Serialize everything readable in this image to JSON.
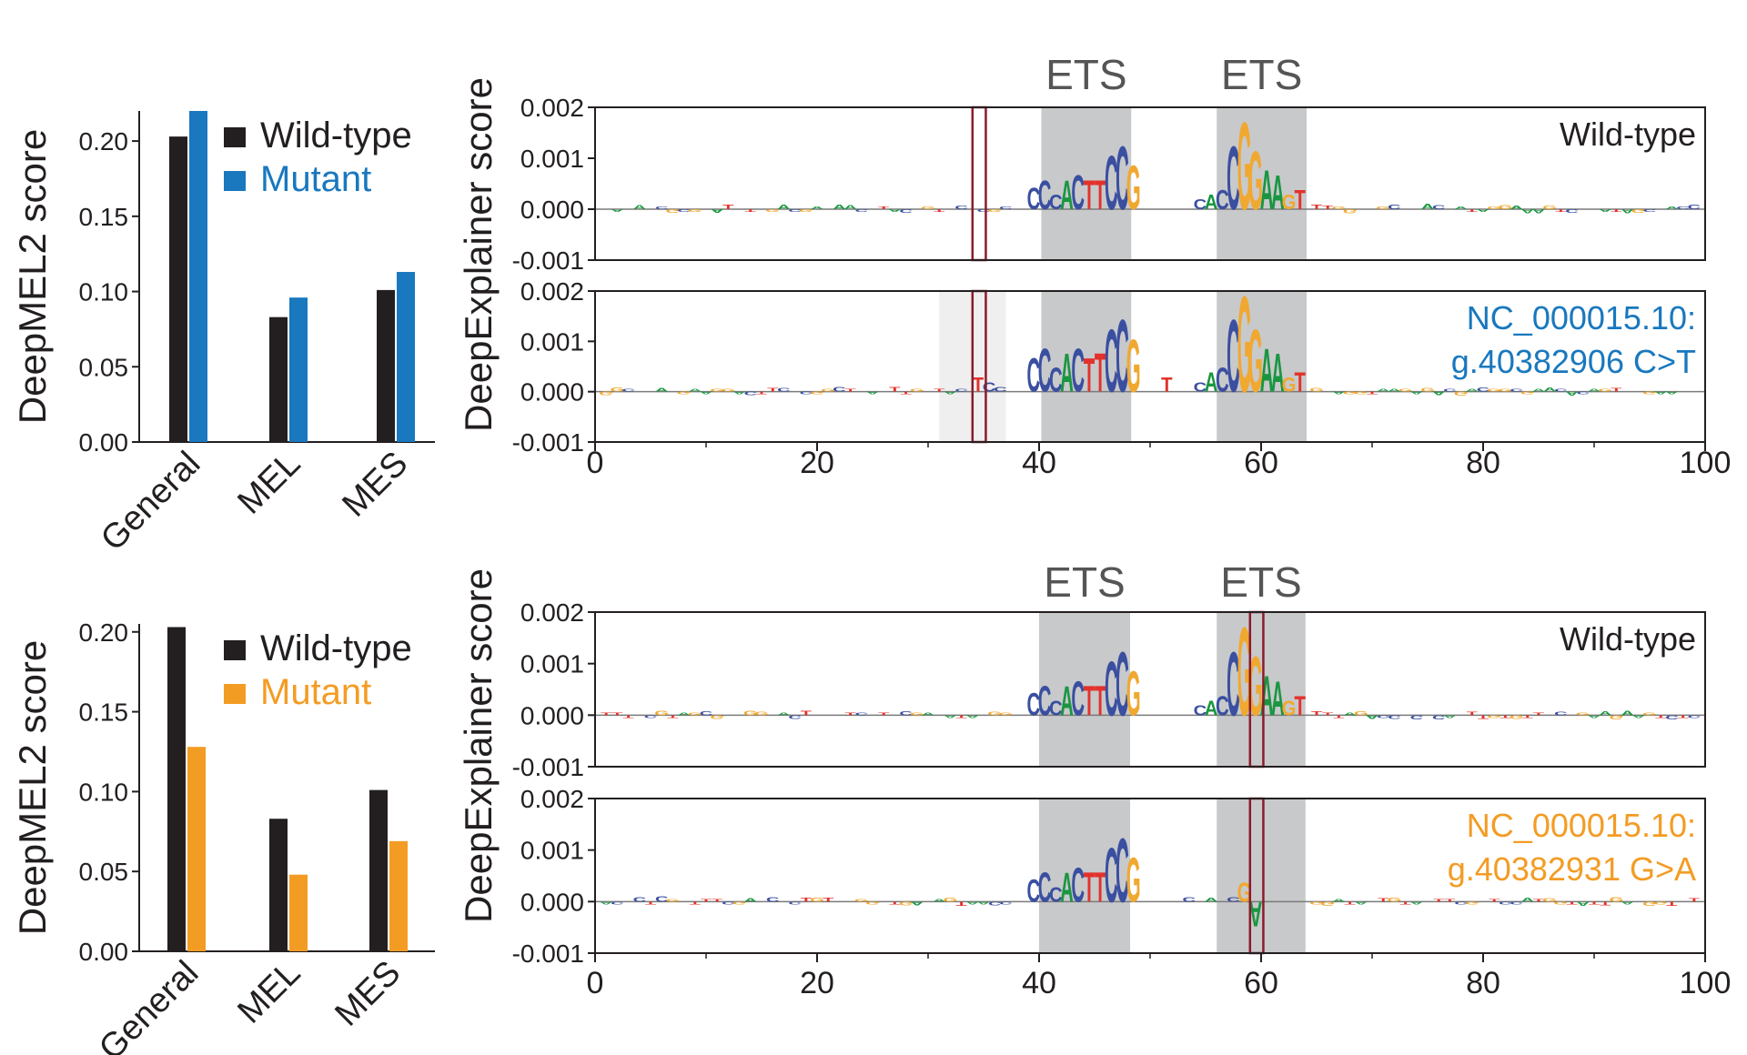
{
  "colors": {
    "wildtype": "#231f20",
    "mutant_blue": "#1978be",
    "mutant_orange": "#f39c24",
    "motif_shade": "#c8c9cb",
    "variant_box": "#8b1a2b",
    "base_A": "#1a9641",
    "base_C": "#3a4fa0",
    "base_G": "#f0a830",
    "base_T": "#e2322b"
  },
  "chart_data": [
    {
      "id": "bars-top",
      "type": "bar",
      "ylabel": "DeepMEL2 score",
      "ylim": [
        0,
        0.22
      ],
      "yticks": [
        "0.00",
        "0.05",
        "0.10",
        "0.15",
        "0.20"
      ],
      "ytick_values": [
        0,
        0.05,
        0.1,
        0.15,
        0.2
      ],
      "categories": [
        "General",
        "MEL",
        "MES"
      ],
      "legend": [
        "Wild-type",
        "Mutant"
      ],
      "series": [
        {
          "name": "Wild-type",
          "color": "#231f20",
          "values": [
            0.203,
            0.083,
            0.101
          ]
        },
        {
          "name": "Mutant",
          "color": "#1978be",
          "values": [
            0.22,
            0.096,
            0.113
          ]
        }
      ]
    },
    {
      "id": "bars-bottom",
      "type": "bar",
      "ylabel": "DeepMEL2 score",
      "ylim": [
        0,
        0.205
      ],
      "yticks": [
        "0.00",
        "0.05",
        "0.10",
        "0.15",
        "0.20"
      ],
      "ytick_values": [
        0,
        0.05,
        0.1,
        0.15,
        0.2
      ],
      "categories": [
        "General",
        "MEL",
        "MES"
      ],
      "legend": [
        "Wild-type",
        "Mutant"
      ],
      "series": [
        {
          "name": "Wild-type",
          "color": "#231f20",
          "values": [
            0.203,
            0.083,
            0.101
          ]
        },
        {
          "name": "Mutant",
          "color": "#f39c24",
          "values": [
            0.128,
            0.048,
            0.069
          ]
        }
      ]
    },
    {
      "id": "logo-top",
      "type": "sequence-logo",
      "ylabel": "DeepExplainer score",
      "xlim": [
        0,
        100
      ],
      "xticks": [
        "0",
        "20",
        "40",
        "60",
        "80",
        "100"
      ],
      "xtick_values": [
        0,
        20,
        40,
        60,
        80,
        100
      ],
      "ylim": [
        -0.001,
        0.002
      ],
      "yticks": [
        "0.002",
        "0.001",
        "0.000",
        "-0.001"
      ],
      "ytick_values": [
        0.002,
        0.001,
        0.0,
        -0.001
      ],
      "motifs": [
        {
          "label": "ETS",
          "start": 40.2,
          "end": 48.3
        },
        {
          "label": "ETS",
          "start": 56.0,
          "end": 64.1
        }
      ],
      "panels": [
        {
          "label_lines": [
            "Wild-type"
          ],
          "label_color": "#231f20",
          "variant_box": {
            "start": 34.0,
            "end": 35.2
          },
          "shade": null,
          "motif_letters": [
            {
              "base": "C",
              "pos": 39.0,
              "score": 0.00045
            },
            {
              "base": "C",
              "pos": 40.0,
              "score": 0.0006
            },
            {
              "base": "C",
              "pos": 41.0,
              "score": 0.0003
            },
            {
              "base": "A",
              "pos": 42.0,
              "score": 0.0006
            },
            {
              "base": "C",
              "pos": 43.0,
              "score": 0.0007
            },
            {
              "base": "T",
              "pos": 44.0,
              "score": 0.0006
            },
            {
              "base": "T",
              "pos": 45.0,
              "score": 0.0006
            },
            {
              "base": "C",
              "pos": 46.0,
              "score": 0.0011
            },
            {
              "base": "C",
              "pos": 47.0,
              "score": 0.0013
            },
            {
              "base": "G",
              "pos": 48.0,
              "score": 0.0009
            },
            {
              "base": "C",
              "pos": 54.0,
              "score": 0.0002
            },
            {
              "base": "A",
              "pos": 55.0,
              "score": 0.0003
            },
            {
              "base": "C",
              "pos": 56.0,
              "score": 0.0004
            },
            {
              "base": "C",
              "pos": 57.0,
              "score": 0.0013
            },
            {
              "base": "G",
              "pos": 58.0,
              "score": 0.0018
            },
            {
              "base": "G",
              "pos": 59.0,
              "score": 0.0012
            },
            {
              "base": "A",
              "pos": 60.0,
              "score": 0.0008
            },
            {
              "base": "A",
              "pos": 61.0,
              "score": 0.0007
            },
            {
              "base": "G",
              "pos": 62.0,
              "score": 0.0003
            },
            {
              "base": "T",
              "pos": 63.0,
              "score": 0.0004
            }
          ]
        },
        {
          "label_lines": [
            "NC_000015.10:",
            "g.40382906 C>T"
          ],
          "label_color": "#1978be",
          "variant_box": {
            "start": 34.0,
            "end": 35.2
          },
          "shade": {
            "start": 31.0,
            "end": 37.0
          },
          "motif_letters": [
            {
              "base": "T",
              "pos": 34.0,
              "score": 0.0003
            },
            {
              "base": "C",
              "pos": 35.0,
              "score": 0.0002
            },
            {
              "base": "C",
              "pos": 36.0,
              "score": 0.0001
            },
            {
              "base": "C",
              "pos": 39.0,
              "score": 0.0007
            },
            {
              "base": "C",
              "pos": 40.0,
              "score": 0.0009
            },
            {
              "base": "C",
              "pos": 41.0,
              "score": 0.0005
            },
            {
              "base": "A",
              "pos": 42.0,
              "score": 0.0008
            },
            {
              "base": "C",
              "pos": 43.0,
              "score": 0.0009
            },
            {
              "base": "T",
              "pos": 44.0,
              "score": 0.0007
            },
            {
              "base": "T",
              "pos": 45.0,
              "score": 0.0008
            },
            {
              "base": "C",
              "pos": 46.0,
              "score": 0.0013
            },
            {
              "base": "C",
              "pos": 47.0,
              "score": 0.0015
            },
            {
              "base": "G",
              "pos": 48.0,
              "score": 0.0011
            },
            {
              "base": "T",
              "pos": 51.0,
              "score": 0.0003
            },
            {
              "base": "C",
              "pos": 54.0,
              "score": 0.0002
            },
            {
              "base": "A",
              "pos": 55.0,
              "score": 0.0004
            },
            {
              "base": "C",
              "pos": 56.0,
              "score": 0.0005
            },
            {
              "base": "C",
              "pos": 57.0,
              "score": 0.0015
            },
            {
              "base": "G",
              "pos": 58.0,
              "score": 0.002
            },
            {
              "base": "G",
              "pos": 59.0,
              "score": 0.0013
            },
            {
              "base": "A",
              "pos": 60.0,
              "score": 0.0009
            },
            {
              "base": "A",
              "pos": 61.0,
              "score": 0.0008
            },
            {
              "base": "G",
              "pos": 62.0,
              "score": 0.0003
            },
            {
              "base": "T",
              "pos": 63.0,
              "score": 0.0004
            }
          ]
        }
      ]
    },
    {
      "id": "logo-bottom",
      "type": "sequence-logo",
      "ylabel": "DeepExplainer score",
      "xlim": [
        0,
        100
      ],
      "xticks": [
        "0",
        "20",
        "40",
        "60",
        "80",
        "100"
      ],
      "xtick_values": [
        0,
        20,
        40,
        60,
        80,
        100
      ],
      "ylim": [
        -0.001,
        0.002
      ],
      "yticks": [
        "0.002",
        "0.001",
        "0.000",
        "-0.001"
      ],
      "ytick_values": [
        0.002,
        0.001,
        0.0,
        -0.001
      ],
      "motifs": [
        {
          "label": "ETS",
          "start": 40.0,
          "end": 48.2
        },
        {
          "label": "ETS",
          "start": 56.0,
          "end": 64.0
        }
      ],
      "panels": [
        {
          "label_lines": [
            "Wild-type"
          ],
          "label_color": "#231f20",
          "variant_box": {
            "start": 59.0,
            "end": 60.2
          },
          "shade": null,
          "motif_letters": [
            {
              "base": "C",
              "pos": 39.0,
              "score": 0.00045
            },
            {
              "base": "C",
              "pos": 40.0,
              "score": 0.0006
            },
            {
              "base": "C",
              "pos": 41.0,
              "score": 0.0003
            },
            {
              "base": "A",
              "pos": 42.0,
              "score": 0.0006
            },
            {
              "base": "C",
              "pos": 43.0,
              "score": 0.0007
            },
            {
              "base": "T",
              "pos": 44.0,
              "score": 0.0006
            },
            {
              "base": "T",
              "pos": 45.0,
              "score": 0.0006
            },
            {
              "base": "C",
              "pos": 46.0,
              "score": 0.0011
            },
            {
              "base": "C",
              "pos": 47.0,
              "score": 0.0013
            },
            {
              "base": "G",
              "pos": 48.0,
              "score": 0.0009
            },
            {
              "base": "C",
              "pos": 54.0,
              "score": 0.0002
            },
            {
              "base": "A",
              "pos": 55.0,
              "score": 0.0003
            },
            {
              "base": "C",
              "pos": 56.0,
              "score": 0.0004
            },
            {
              "base": "C",
              "pos": 57.0,
              "score": 0.0013
            },
            {
              "base": "G",
              "pos": 58.0,
              "score": 0.0018
            },
            {
              "base": "G",
              "pos": 59.0,
              "score": 0.0012
            },
            {
              "base": "A",
              "pos": 60.0,
              "score": 0.0008
            },
            {
              "base": "A",
              "pos": 61.0,
              "score": 0.0007
            },
            {
              "base": "G",
              "pos": 62.0,
              "score": 0.0003
            },
            {
              "base": "T",
              "pos": 63.0,
              "score": 0.0004
            }
          ]
        },
        {
          "label_lines": [
            "NC_000015.10:",
            "g.40382931 G>A"
          ],
          "label_color": "#f39c24",
          "variant_box": {
            "start": 59.0,
            "end": 60.2
          },
          "shade": null,
          "motif_letters": [
            {
              "base": "C",
              "pos": 39.0,
              "score": 0.00045
            },
            {
              "base": "C",
              "pos": 40.0,
              "score": 0.0006
            },
            {
              "base": "C",
              "pos": 41.0,
              "score": 0.0003
            },
            {
              "base": "A",
              "pos": 42.0,
              "score": 0.0006
            },
            {
              "base": "C",
              "pos": 43.0,
              "score": 0.0007
            },
            {
              "base": "T",
              "pos": 44.0,
              "score": 0.0006
            },
            {
              "base": "T",
              "pos": 45.0,
              "score": 0.0006
            },
            {
              "base": "C",
              "pos": 46.0,
              "score": 0.0011
            },
            {
              "base": "C",
              "pos": 47.0,
              "score": 0.0013
            },
            {
              "base": "G",
              "pos": 48.0,
              "score": 0.0009
            },
            {
              "base": "C",
              "pos": 53.0,
              "score": 0.0001
            },
            {
              "base": "A",
              "pos": 55.0,
              "score": 8e-05
            },
            {
              "base": "C",
              "pos": 57.0,
              "score": 0.0001
            },
            {
              "base": "G",
              "pos": 58.0,
              "score": 0.0004
            },
            {
              "base": "A",
              "pos": 59.0,
              "score": -0.0005
            }
          ]
        }
      ]
    }
  ]
}
